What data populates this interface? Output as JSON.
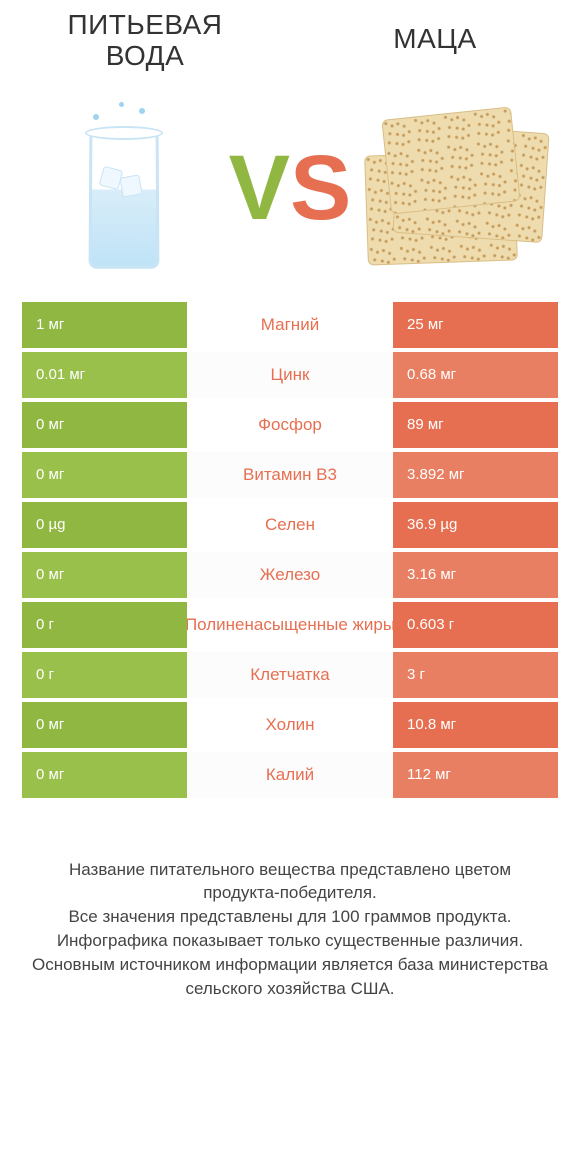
{
  "colors": {
    "green": "#8fb741",
    "green_alt": "#99c04a",
    "orange": "#e76f51",
    "orange_alt": "#e97f62",
    "mid_bg_even": "#ffffff",
    "mid_bg_odd": "#fcfcfc",
    "text_dark": "#333333",
    "cell_text": "#ffffff"
  },
  "titles": {
    "left_line1": "ПИТЬЕВАЯ",
    "left_line2": "ВОДА",
    "right": "МАЦА"
  },
  "nutrients": [
    {
      "name": "Магний",
      "left": "1 мг",
      "right": "25 мг",
      "winner": "right"
    },
    {
      "name": "Цинк",
      "left": "0.01 мг",
      "right": "0.68 мг",
      "winner": "right"
    },
    {
      "name": "Фосфор",
      "left": "0 мг",
      "right": "89 мг",
      "winner": "right"
    },
    {
      "name": "Витамин B3",
      "left": "0 мг",
      "right": "3.892 мг",
      "winner": "right"
    },
    {
      "name": "Селен",
      "left": "0 µg",
      "right": "36.9 µg",
      "winner": "right"
    },
    {
      "name": "Железо",
      "left": "0 мг",
      "right": "3.16 мг",
      "winner": "right"
    },
    {
      "name": "Полиненасыщенные жиры",
      "left": "0 г",
      "right": "0.603 г",
      "winner": "right"
    },
    {
      "name": "Клетчатка",
      "left": "0 г",
      "right": "3 г",
      "winner": "right"
    },
    {
      "name": "Холин",
      "left": "0 мг",
      "right": "10.8 мг",
      "winner": "right"
    },
    {
      "name": "Калий",
      "left": "0 мг",
      "right": "112 мг",
      "winner": "right"
    }
  ],
  "footer": [
    "Название питательного вещества представлено цветом",
    "продукта-победителя.",
    "Все значения представлены для 100 граммов продукта.",
    "Инфографика показывает только существенные различия.",
    "Основным источником информации является база министерства",
    "сельского хозяйства США."
  ]
}
